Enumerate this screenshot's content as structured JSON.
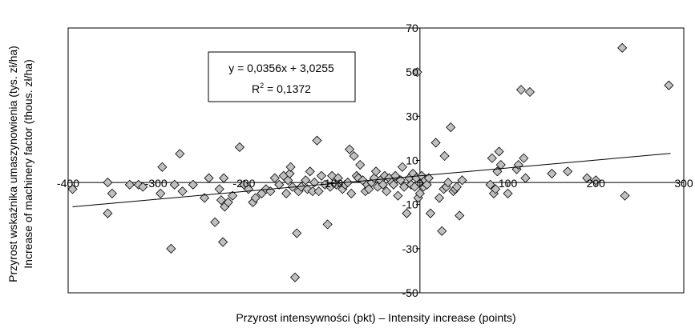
{
  "chart_data": {
    "type": "scatter",
    "title": "",
    "xlabel": "Przyrost intensywności (pkt) – Intensity increase (points)",
    "ylabel_lines": [
      "Przyrost wskaźnika umaszynowienia (tys. zł/ha)",
      "Increase of machinery factor (thous. zł/ha)"
    ],
    "xlim": [
      -400,
      300
    ],
    "ylim": [
      -50,
      70
    ],
    "x_ticks": [
      -400,
      -300,
      -200,
      -100,
      0,
      100,
      200,
      300
    ],
    "y_ticks": [
      -50,
      -30,
      -10,
      10,
      30,
      50,
      70
    ],
    "x_tick_labels": [
      "-400",
      "-300",
      "-200",
      "-100",
      "0",
      "100",
      "200",
      "300"
    ],
    "y_tick_labels": [
      "-50",
      "-30",
      "-10",
      "10",
      "30",
      "50",
      "70"
    ],
    "grid": false,
    "marker": "diamond",
    "marker_color": "#c0c0c0",
    "trendline": {
      "slope": 0.0356,
      "intercept": 3.0255,
      "x_range": [
        -395,
        285
      ],
      "equation": "y = 0,0356x + 3,0255",
      "r2_prefix": "R",
      "r2_superscript": "2",
      "r2_suffix": " = 0,1372"
    },
    "points": [
      {
        "x": -395,
        "y": -3
      },
      {
        "x": -355,
        "y": -14
      },
      {
        "x": -355,
        "y": 0
      },
      {
        "x": -350,
        "y": -5
      },
      {
        "x": -330,
        "y": -1
      },
      {
        "x": -320,
        "y": -1
      },
      {
        "x": -315,
        "y": -2
      },
      {
        "x": -295,
        "y": -5
      },
      {
        "x": -293,
        "y": 7
      },
      {
        "x": -283,
        "y": -30
      },
      {
        "x": -279,
        "y": -1
      },
      {
        "x": -273,
        "y": 13
      },
      {
        "x": -270,
        "y": -4
      },
      {
        "x": -258,
        "y": -1
      },
      {
        "x": -245,
        "y": -7
      },
      {
        "x": -240,
        "y": 2
      },
      {
        "x": -233,
        "y": -18
      },
      {
        "x": -228,
        "y": -3
      },
      {
        "x": -226,
        "y": -8
      },
      {
        "x": -224,
        "y": -27
      },
      {
        "x": -223,
        "y": 2
      },
      {
        "x": -222,
        "y": -11
      },
      {
        "x": -218,
        "y": -9
      },
      {
        "x": -213,
        "y": -6
      },
      {
        "x": -205,
        "y": 16
      },
      {
        "x": -200,
        "y": -1
      },
      {
        "x": -195,
        "y": -3
      },
      {
        "x": -190,
        "y": -9
      },
      {
        "x": -187,
        "y": -7
      },
      {
        "x": -180,
        "y": -5
      },
      {
        "x": -175,
        "y": -3
      },
      {
        "x": -170,
        "y": -4
      },
      {
        "x": -165,
        "y": 2
      },
      {
        "x": -160,
        "y": -1
      },
      {
        "x": -155,
        "y": 3
      },
      {
        "x": -152,
        "y": -5
      },
      {
        "x": -150,
        "y": 1
      },
      {
        "x": -148,
        "y": 4
      },
      {
        "x": -147,
        "y": 7
      },
      {
        "x": -145,
        "y": -2
      },
      {
        "x": -142,
        "y": -43
      },
      {
        "x": -140,
        "y": -23
      },
      {
        "x": -138,
        "y": -4
      },
      {
        "x": -135,
        "y": -2
      },
      {
        "x": -130,
        "y": 1
      },
      {
        "x": -128,
        "y": -3
      },
      {
        "x": -125,
        "y": 5
      },
      {
        "x": -122,
        "y": -4
      },
      {
        "x": -120,
        "y": 0
      },
      {
        "x": -117,
        "y": 19
      },
      {
        "x": -115,
        "y": -4
      },
      {
        "x": -112,
        "y": 3
      },
      {
        "x": -108,
        "y": -1
      },
      {
        "x": -105,
        "y": -19
      },
      {
        "x": -102,
        "y": -2
      },
      {
        "x": -100,
        "y": 3
      },
      {
        "x": -95,
        "y": -1
      },
      {
        "x": -93,
        "y": 2
      },
      {
        "x": -88,
        "y": -3
      },
      {
        "x": -85,
        "y": -1
      },
      {
        "x": -82,
        "y": 0
      },
      {
        "x": -80,
        "y": 15
      },
      {
        "x": -78,
        "y": -5
      },
      {
        "x": -75,
        "y": 12
      },
      {
        "x": -72,
        "y": 3
      },
      {
        "x": -70,
        "y": 2
      },
      {
        "x": -68,
        "y": 8
      },
      {
        "x": -65,
        "y": 1
      },
      {
        "x": -62,
        "y": -4
      },
      {
        "x": -60,
        "y": -1
      },
      {
        "x": -58,
        "y": -3
      },
      {
        "x": -55,
        "y": 0
      },
      {
        "x": -52,
        "y": 2
      },
      {
        "x": -50,
        "y": 5
      },
      {
        "x": -48,
        "y": -2
      },
      {
        "x": -45,
        "y": 1
      },
      {
        "x": -42,
        "y": -1
      },
      {
        "x": -40,
        "y": 3
      },
      {
        "x": -38,
        "y": -4
      },
      {
        "x": -35,
        "y": 2
      },
      {
        "x": -32,
        "y": 0
      },
      {
        "x": -30,
        "y": -1
      },
      {
        "x": -28,
        "y": 3
      },
      {
        "x": -25,
        "y": -6
      },
      {
        "x": -22,
        "y": 1
      },
      {
        "x": -20,
        "y": 7
      },
      {
        "x": -18,
        "y": -2
      },
      {
        "x": -15,
        "y": -14
      },
      {
        "x": -12,
        "y": 2
      },
      {
        "x": -10,
        "y": -1
      },
      {
        "x": -8,
        "y": 4
      },
      {
        "x": -6,
        "y": -2
      },
      {
        "x": -4,
        "y": 2
      },
      {
        "x": -3,
        "y": 50
      },
      {
        "x": -2,
        "y": -7
      },
      {
        "x": 0,
        "y": -5
      },
      {
        "x": 2,
        "y": 3
      },
      {
        "x": 4,
        "y": -2
      },
      {
        "x": 6,
        "y": 1
      },
      {
        "x": 8,
        "y": -1
      },
      {
        "x": 10,
        "y": 2
      },
      {
        "x": 12,
        "y": -14
      },
      {
        "x": 18,
        "y": 18
      },
      {
        "x": 22,
        "y": -7
      },
      {
        "x": 25,
        "y": -22
      },
      {
        "x": 27,
        "y": -3
      },
      {
        "x": 28,
        "y": 12
      },
      {
        "x": 30,
        "y": -2
      },
      {
        "x": 32,
        "y": 0
      },
      {
        "x": 35,
        "y": 25
      },
      {
        "x": 38,
        "y": -4
      },
      {
        "x": 40,
        "y": -3
      },
      {
        "x": 42,
        "y": -2
      },
      {
        "x": 45,
        "y": -15
      },
      {
        "x": 48,
        "y": 1
      },
      {
        "x": 80,
        "y": -1
      },
      {
        "x": 82,
        "y": 11
      },
      {
        "x": 84,
        "y": -5
      },
      {
        "x": 86,
        "y": -3
      },
      {
        "x": 88,
        "y": 5
      },
      {
        "x": 90,
        "y": 14
      },
      {
        "x": 92,
        "y": 8
      },
      {
        "x": 100,
        "y": -5
      },
      {
        "x": 110,
        "y": 6
      },
      {
        "x": 112,
        "y": 8
      },
      {
        "x": 115,
        "y": 42
      },
      {
        "x": 118,
        "y": 11
      },
      {
        "x": 120,
        "y": 2
      },
      {
        "x": 125,
        "y": 41
      },
      {
        "x": 150,
        "y": 4
      },
      {
        "x": 168,
        "y": 5
      },
      {
        "x": 190,
        "y": 2
      },
      {
        "x": 200,
        "y": 1
      },
      {
        "x": 230,
        "y": 61
      },
      {
        "x": 233,
        "y": -6
      },
      {
        "x": 283,
        "y": 44
      }
    ]
  }
}
